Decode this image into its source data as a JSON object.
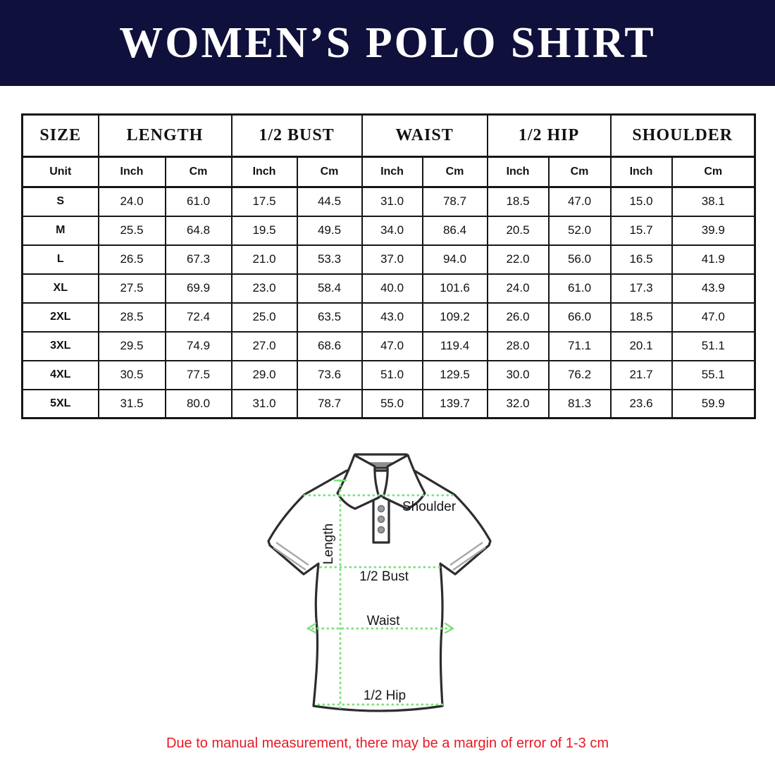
{
  "banner": {
    "title": "WOMEN’S POLO SHIRT"
  },
  "colors": {
    "banner_bg": "#10103c",
    "banner_text": "#ffffff",
    "table_border": "#161616",
    "measure_line": "#7de07d",
    "note_text": "#e61a26",
    "shirt_outline": "#2d2d2d"
  },
  "table": {
    "header_groups": [
      {
        "label": "SIZE"
      },
      {
        "label": "LENGTH"
      },
      {
        "label": "1/2 BUST"
      },
      {
        "label": "WAIST"
      },
      {
        "label": "1/2 HIP"
      },
      {
        "label": "SHOULDER"
      }
    ],
    "unit_row": [
      "Unit",
      "Inch",
      "Cm",
      "Inch",
      "Cm",
      "Inch",
      "Cm",
      "Inch",
      "Cm",
      "Inch",
      "Cm"
    ],
    "rows": [
      {
        "size": "S",
        "values": [
          "24.0",
          "61.0",
          "17.5",
          "44.5",
          "31.0",
          "78.7",
          "18.5",
          "47.0",
          "15.0",
          "38.1"
        ]
      },
      {
        "size": "M",
        "values": [
          "25.5",
          "64.8",
          "19.5",
          "49.5",
          "34.0",
          "86.4",
          "20.5",
          "52.0",
          "15.7",
          "39.9"
        ]
      },
      {
        "size": "L",
        "values": [
          "26.5",
          "67.3",
          "21.0",
          "53.3",
          "37.0",
          "94.0",
          "22.0",
          "56.0",
          "16.5",
          "41.9"
        ]
      },
      {
        "size": "XL",
        "values": [
          "27.5",
          "69.9",
          "23.0",
          "58.4",
          "40.0",
          "101.6",
          "24.0",
          "61.0",
          "17.3",
          "43.9"
        ]
      },
      {
        "size": "2XL",
        "values": [
          "28.5",
          "72.4",
          "25.0",
          "63.5",
          "43.0",
          "109.2",
          "26.0",
          "66.0",
          "18.5",
          "47.0"
        ]
      },
      {
        "size": "3XL",
        "values": [
          "29.5",
          "74.9",
          "27.0",
          "68.6",
          "47.0",
          "119.4",
          "28.0",
          "71.1",
          "20.1",
          "51.1"
        ]
      },
      {
        "size": "4XL",
        "values": [
          "30.5",
          "77.5",
          "29.0",
          "73.6",
          "51.0",
          "129.5",
          "30.0",
          "76.2",
          "21.7",
          "55.1"
        ]
      },
      {
        "size": "5XL",
        "values": [
          "31.5",
          "80.0",
          "31.0",
          "78.7",
          "55.0",
          "139.7",
          "32.0",
          "81.3",
          "23.6",
          "59.9"
        ]
      }
    ]
  },
  "diagram": {
    "labels": {
      "shoulder": "Shoulder",
      "length": "Length",
      "bust": "1/2 Bust",
      "waist": "Waist",
      "hip": "1/2 Hip"
    }
  },
  "note": {
    "text": "Due to manual measurement, there may be a margin of error of 1-3 cm"
  },
  "chart_data": {
    "type": "table",
    "title": "WOMEN’S POLO SHIRT",
    "columns": [
      "Size",
      "Length (Inch)",
      "Length (Cm)",
      "1/2 Bust (Inch)",
      "1/2 Bust (Cm)",
      "Waist (Inch)",
      "Waist (Cm)",
      "1/2 Hip (Inch)",
      "1/2 Hip (Cm)",
      "Shoulder (Inch)",
      "Shoulder (Cm)"
    ],
    "rows": [
      [
        "S",
        24.0,
        61.0,
        17.5,
        44.5,
        31.0,
        78.7,
        18.5,
        47.0,
        15.0,
        38.1
      ],
      [
        "M",
        25.5,
        64.8,
        19.5,
        49.5,
        34.0,
        86.4,
        20.5,
        52.0,
        15.7,
        39.9
      ],
      [
        "L",
        26.5,
        67.3,
        21.0,
        53.3,
        37.0,
        94.0,
        22.0,
        56.0,
        16.5,
        41.9
      ],
      [
        "XL",
        27.5,
        69.9,
        23.0,
        58.4,
        40.0,
        101.6,
        24.0,
        61.0,
        17.3,
        43.9
      ],
      [
        "2XL",
        28.5,
        72.4,
        25.0,
        63.5,
        43.0,
        109.2,
        26.0,
        66.0,
        18.5,
        47.0
      ],
      [
        "3XL",
        29.5,
        74.9,
        27.0,
        68.6,
        47.0,
        119.4,
        28.0,
        71.1,
        20.1,
        51.1
      ],
      [
        "4XL",
        30.5,
        77.5,
        29.0,
        73.6,
        51.0,
        129.5,
        30.0,
        76.2,
        21.7,
        55.1
      ],
      [
        "5XL",
        31.5,
        80.0,
        31.0,
        78.7,
        55.0,
        139.7,
        32.0,
        81.3,
        23.6,
        59.9
      ]
    ],
    "note": "Due to manual measurement, there may be a margin of error of 1-3 cm"
  }
}
